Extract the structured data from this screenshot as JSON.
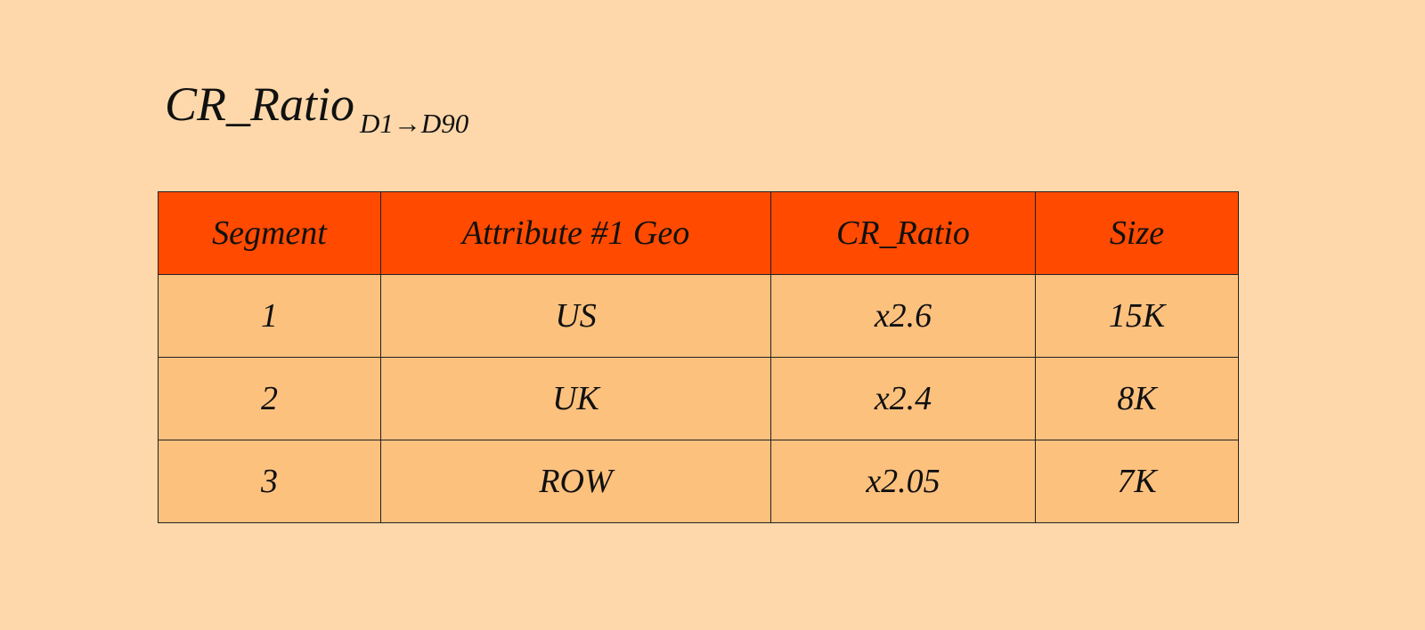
{
  "header": {
    "title": "CR_Ratio",
    "subscript": "D1→D90"
  },
  "table": {
    "columns": [
      "Segment",
      "Attribute #1 Geo",
      "CR_Ratio",
      "Size"
    ],
    "rows": [
      [
        "1",
        "US",
        "x2.6",
        "15K"
      ],
      [
        "2",
        "UK",
        "x2.4",
        "8K"
      ],
      [
        "3",
        "ROW",
        "x2.05",
        "7K"
      ]
    ]
  }
}
